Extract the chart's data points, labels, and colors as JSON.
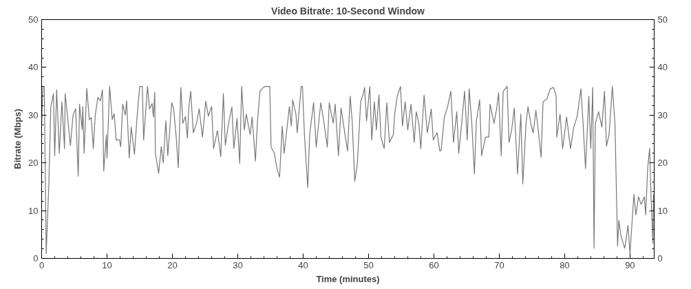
{
  "chart_data": {
    "type": "line",
    "title": "Video Bitrate: 10-Second Window",
    "xlabel": "Time (minutes)",
    "ylabel": "Bitrate (Mbps)",
    "xlim": [
      0,
      93.7
    ],
    "xticks": [
      0,
      10,
      20,
      30,
      40,
      50,
      60,
      70,
      80,
      90
    ],
    "ylim": [
      0,
      50
    ],
    "yticks": [
      0,
      10,
      20,
      30,
      40,
      50
    ],
    "y2lim": [
      0,
      50
    ],
    "y2ticks": [
      0,
      10,
      20,
      30,
      40,
      50
    ],
    "grid": false,
    "marker": "none",
    "line_style": "solid",
    "series": [
      {
        "color": "#777777",
        "x": [
          0,
          0.2,
          0.4,
          0.7,
          1.1,
          1.4,
          1.8,
          2.0,
          2.3,
          2.7,
          3.1,
          3.5,
          3.6,
          3.9,
          4.4,
          4.8,
          5.2,
          5.6,
          5.8,
          6.2,
          6.3,
          6.5,
          6.9,
          7.3,
          7.6,
          7.9,
          8.2,
          8.6,
          9.0,
          9.3,
          9.5,
          9.9,
          10.0,
          10.4,
          10.8,
          11.1,
          11.4,
          11.9,
          12.1,
          12.4,
          12.8,
          13.0,
          13.4,
          13.7,
          14.2,
          14.6,
          15.0,
          15.4,
          15.6,
          16.2,
          16.5,
          16.9,
          17.1,
          17.3,
          17.4,
          17.9,
          18.3,
          18.6,
          19.0,
          19.3,
          19.9,
          20.2,
          20.6,
          20.9,
          21.3,
          21.6,
          22.0,
          22.3,
          22.5,
          22.8,
          23.2,
          23.7,
          24.1,
          24.6,
          25.1,
          25.5,
          26.0,
          26.3,
          26.9,
          27.4,
          27.8,
          28.1,
          28.6,
          29.1,
          29.4,
          29.9,
          30.3,
          30.6,
          31.0,
          31.3,
          31.9,
          32.2,
          32.7,
          33.0,
          33.4,
          33.9,
          34.2,
          34.9,
          35.1,
          35.6,
          36.0,
          36.4,
          36.8,
          37.1,
          37.9,
          38.2,
          38.4,
          38.9,
          39.1,
          39.7,
          39.9,
          40.2,
          40.7,
          41.0,
          41.6,
          42.0,
          42.7,
          43.2,
          43.7,
          44.0,
          44.6,
          44.9,
          45.4,
          45.8,
          46.3,
          46.8,
          47.2,
          47.5,
          47.9,
          48.3,
          48.8,
          49.2,
          49.4,
          49.7,
          50.2,
          50.5,
          50.9,
          51.2,
          51.6,
          51.9,
          52.4,
          52.8,
          53.2,
          53.8,
          54.0,
          54.4,
          54.9,
          55.2,
          55.6,
          56.0,
          56.5,
          57.0,
          57.3,
          57.7,
          58.0,
          58.5,
          59.0,
          59.6,
          59.9,
          60.5,
          60.9,
          61.1,
          61.6,
          62.1,
          62.6,
          63.0,
          63.5,
          63.8,
          64.2,
          64.7,
          65.1,
          65.4,
          65.8,
          66.2,
          66.5,
          67.0,
          67.3,
          67.9,
          68.4,
          68.6,
          69.2,
          69.6,
          69.9,
          70.3,
          70.6,
          71.2,
          71.5,
          71.9,
          72.3,
          72.8,
          73.3,
          73.6,
          74.1,
          74.4,
          74.9,
          75.2,
          75.6,
          75.9,
          76.4,
          76.7,
          77.3,
          77.8,
          78.3,
          78.7,
          78.8,
          79.3,
          79.7,
          80.3,
          80.9,
          81.4,
          81.9,
          82.5,
          82.8,
          83.2,
          83.7,
          84.0,
          84.3,
          84.5,
          84.7,
          85.2,
          85.7,
          86.1,
          86.4,
          86.8,
          87.3,
          87.7,
          88.1,
          88.3,
          88.6,
          89.2,
          89.7,
          90.0,
          90.6,
          90.9,
          91.3,
          91.7,
          92.2,
          92.4,
          92.7,
          93.0,
          93.2,
          93.5,
          93.6
        ],
        "values": [
          28,
          36,
          36,
          1,
          15.5,
          31.7,
          34.5,
          21.5,
          35.3,
          22,
          32.8,
          23,
          34.5,
          30.5,
          23.6,
          30,
          31.3,
          17.2,
          32.3,
          27,
          31.8,
          22,
          35.6,
          29,
          29.5,
          23,
          30,
          33.7,
          33,
          35.3,
          18.3,
          25.9,
          21,
          36,
          29.1,
          30.3,
          24.8,
          24.8,
          23.4,
          32.3,
          30,
          33,
          21,
          27.5,
          21.8,
          29.7,
          36,
          36,
          24.8,
          36,
          31.3,
          32.4,
          29.6,
          34.8,
          22,
          17.8,
          23.4,
          20,
          28.8,
          21.5,
          32.6,
          31.3,
          25.2,
          19,
          35.8,
          28.3,
          29.7,
          25.2,
          31.3,
          35,
          26.3,
          28.3,
          31.3,
          25.4,
          32.9,
          29.8,
          31.8,
          23,
          26.8,
          21.3,
          34.5,
          23.7,
          28.3,
          31.7,
          23,
          29.3,
          19.9,
          36,
          26.9,
          30.2,
          25.9,
          29.6,
          20.4,
          28.3,
          35,
          35.8,
          36,
          36,
          23.3,
          22,
          18.8,
          17,
          27.7,
          22,
          31.8,
          27.7,
          33.2,
          30.2,
          26.3,
          36,
          36,
          25.9,
          14.8,
          25.9,
          32.6,
          23.3,
          32.6,
          28.3,
          23.3,
          32.6,
          28.3,
          32.3,
          21.5,
          31.5,
          26.9,
          22.5,
          34,
          28.8,
          16.1,
          20,
          32.8,
          34.5,
          35.8,
          28.8,
          36,
          24.8,
          32.8,
          26.9,
          34.2,
          25.4,
          23,
          32.6,
          24.3,
          25.9,
          30.2,
          34,
          36,
          27.7,
          32.8,
          26.9,
          32.3,
          24.3,
          30.7,
          28.3,
          23,
          34.2,
          26.3,
          31.3,
          24.8,
          26.3,
          22.5,
          22.6,
          29.5,
          31.8,
          35,
          24.3,
          30.7,
          22,
          27.5,
          35,
          24.8,
          35.5,
          28.3,
          17.7,
          28.8,
          33.2,
          21.5,
          25.4,
          25.4,
          32.3,
          28.3,
          31.3,
          34.7,
          21.5,
          35,
          36,
          24.3,
          26.9,
          31.5,
          17.7,
          30.2,
          15.6,
          28.3,
          31.8,
          27.7,
          26.3,
          31,
          27.7,
          21.2,
          32.8,
          33.4,
          35.5,
          35.8,
          34,
          25.4,
          30.2,
          23,
          29.6,
          23,
          27.5,
          29.6,
          35.5,
          28.8,
          18.8,
          34,
          23,
          35.8,
          2.1,
          28.3,
          30.7,
          27.5,
          35,
          23.5,
          25.9,
          36,
          28.3,
          2.6,
          8,
          4.8,
          2.1,
          6.9,
          1,
          13.4,
          9.1,
          12.9,
          11.3,
          12.9,
          9.1,
          18.8,
          23,
          13.9,
          3.2,
          13.4
        ]
      }
    ]
  }
}
